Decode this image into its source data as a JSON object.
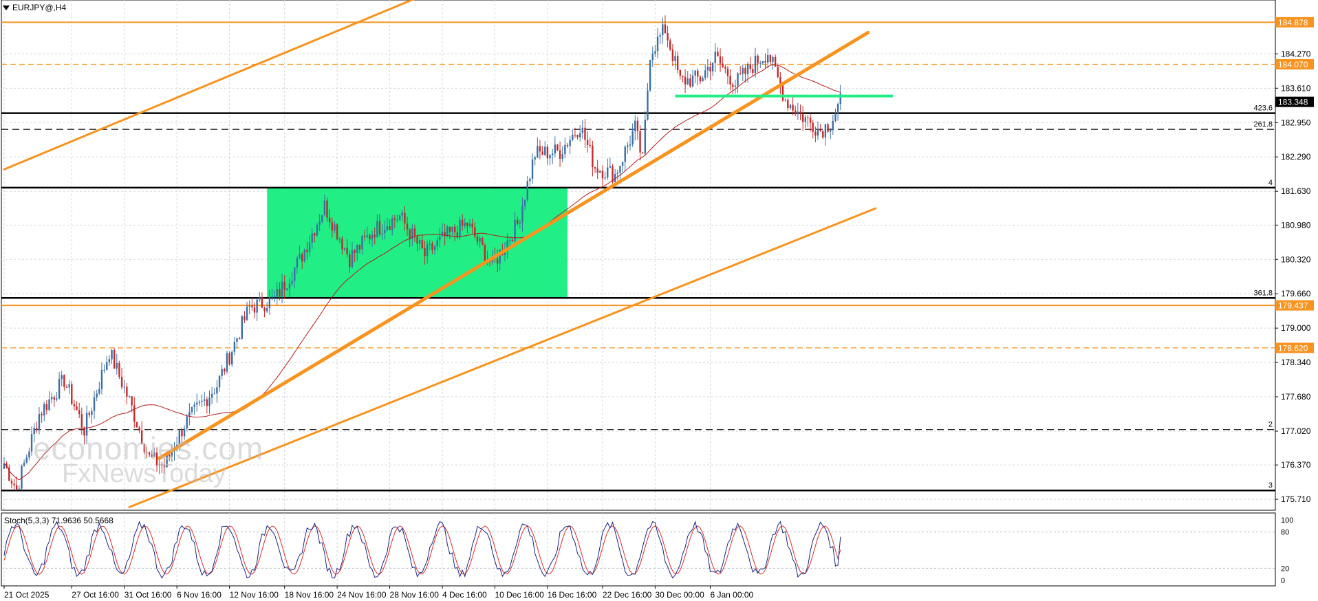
{
  "header": {
    "symbol_label": "EURJPY@,H4"
  },
  "stoch": {
    "label": "Stoch(5,3,3) 71.9636 50.5668",
    "levels": [
      "100",
      "80",
      "20",
      "0"
    ]
  },
  "watermark": {
    "line1": "economies.com",
    "line2": "FxNewsToday"
  },
  "colors": {
    "orange": "#f7931e",
    "green": "#21ee85",
    "ma": "#b11b1b",
    "up": "#3a6ea5",
    "down": "#c62828",
    "k_line": "#1a237e",
    "d_line": "#d32f2f"
  },
  "price_ticks": [
    "184.878",
    "184.270",
    "183.610",
    "182.950",
    "182.290",
    "181.630",
    "180.980",
    "180.320",
    "179.660",
    "179.000",
    "178.340",
    "177.680",
    "177.020",
    "176.370",
    "175.710"
  ],
  "price_tags": [
    {
      "text": "184.878",
      "price": 184.878,
      "bg": "#f7931e",
      "fg": "#fff"
    },
    {
      "text": "184.070",
      "price": 184.07,
      "bg": "#f7931e",
      "fg": "#fff"
    },
    {
      "text": "183.348",
      "price": 183.348,
      "bg": "#000",
      "fg": "#fff"
    },
    {
      "text": "179.437",
      "price": 179.437,
      "bg": "#f7931e",
      "fg": "#fff"
    },
    {
      "text": "178.620",
      "price": 178.62,
      "bg": "#f7931e",
      "fg": "#fff"
    }
  ],
  "fib_labels": [
    {
      "text": "423.6",
      "price": 183.13
    },
    {
      "text": "261.8",
      "price": 182.82
    },
    {
      "text": "4",
      "price": 181.7
    },
    {
      "text": "361.8",
      "price": 179.58
    },
    {
      "text": "2",
      "price": 177.05
    },
    {
      "text": "3",
      "price": 175.88
    }
  ],
  "time_ticks": [
    "21 Oct 2025",
    "27 Oct 16:00",
    "31 Oct 16:00",
    "6 Nov 16:00",
    "12 Nov 16:00",
    "18 Nov 16:00",
    "24 Nov 16:00",
    "28 Nov 16:00",
    "4 Dec 16:00",
    "10 Dec 16:00",
    "16 Dec 16:00",
    "22 Dec 16:00",
    "30 Dec 00:00",
    "6 Jan 00:00"
  ],
  "chart_data": {
    "type": "candlestick",
    "symbol": "EURJPY@",
    "timeframe": "H4",
    "ylim": [
      175.5,
      185.2
    ],
    "horizontal_levels": [
      {
        "price": 184.878,
        "style": "solid",
        "color": "orange"
      },
      {
        "price": 184.07,
        "style": "dashed",
        "color": "orange"
      },
      {
        "price": 183.13,
        "style": "solid",
        "color": "black"
      },
      {
        "price": 182.82,
        "style": "dashed",
        "color": "black"
      },
      {
        "price": 181.7,
        "style": "solid",
        "color": "black"
      },
      {
        "price": 179.58,
        "style": "solid",
        "color": "black"
      },
      {
        "price": 179.437,
        "style": "solid",
        "color": "orange"
      },
      {
        "price": 178.62,
        "style": "dashed",
        "color": "orange"
      },
      {
        "price": 177.05,
        "style": "dashed",
        "color": "black"
      },
      {
        "price": 175.88,
        "style": "solid",
        "color": "black"
      }
    ],
    "green_zone": {
      "from_bar": 105,
      "to_bar": 225,
      "price_low": 179.58,
      "price_high": 181.7
    },
    "green_line": {
      "from_bar": 268,
      "to_bar": 355,
      "price": 183.46
    },
    "trendlines": [
      {
        "bar1": 0,
        "price1": 182.05,
        "bar2": 175,
        "price2": 185.55,
        "width": 3
      },
      {
        "bar1": 50,
        "price1": 175.56,
        "bar2": 348,
        "price2": 181.3,
        "width": 3
      },
      {
        "bar1": 62,
        "price1": 176.5,
        "bar2": 345,
        "price2": 184.68,
        "width": 5
      }
    ],
    "anchors": [
      {
        "bar": 0,
        "price": 176.4
      },
      {
        "bar": 5,
        "price": 175.9
      },
      {
        "bar": 14,
        "price": 177.35
      },
      {
        "bar": 24,
        "price": 178.0
      },
      {
        "bar": 32,
        "price": 177.05
      },
      {
        "bar": 42,
        "price": 178.55
      },
      {
        "bar": 50,
        "price": 177.6
      },
      {
        "bar": 58,
        "price": 176.5
      },
      {
        "bar": 64,
        "price": 176.35
      },
      {
        "bar": 72,
        "price": 177.15
      },
      {
        "bar": 85,
        "price": 177.9
      },
      {
        "bar": 98,
        "price": 179.4
      },
      {
        "bar": 108,
        "price": 179.55
      },
      {
        "bar": 118,
        "price": 180.3
      },
      {
        "bar": 128,
        "price": 181.35
      },
      {
        "bar": 138,
        "price": 180.35
      },
      {
        "bar": 148,
        "price": 180.9
      },
      {
        "bar": 158,
        "price": 181.15
      },
      {
        "bar": 168,
        "price": 180.4
      },
      {
        "bar": 176,
        "price": 180.75
      },
      {
        "bar": 185,
        "price": 181.0
      },
      {
        "bar": 195,
        "price": 180.2
      },
      {
        "bar": 205,
        "price": 181.0
      },
      {
        "bar": 212,
        "price": 182.35
      },
      {
        "bar": 222,
        "price": 182.4
      },
      {
        "bar": 230,
        "price": 182.9
      },
      {
        "bar": 236,
        "price": 182.1
      },
      {
        "bar": 244,
        "price": 181.95
      },
      {
        "bar": 252,
        "price": 182.85
      },
      {
        "bar": 255,
        "price": 182.2
      },
      {
        "bar": 258,
        "price": 184.3
      },
      {
        "bar": 264,
        "price": 184.75
      },
      {
        "bar": 270,
        "price": 183.75
      },
      {
        "bar": 278,
        "price": 183.8
      },
      {
        "bar": 284,
        "price": 184.2
      },
      {
        "bar": 292,
        "price": 183.7
      },
      {
        "bar": 300,
        "price": 184.1
      },
      {
        "bar": 305,
        "price": 184.3
      },
      {
        "bar": 312,
        "price": 183.4
      },
      {
        "bar": 318,
        "price": 183.1
      },
      {
        "bar": 326,
        "price": 182.8
      },
      {
        "bar": 330,
        "price": 182.95
      },
      {
        "bar": 334,
        "price": 183.35
      }
    ],
    "ma_period": 50,
    "stochastic": {
      "k": 71.9636,
      "d": 50.5668,
      "params": [
        5,
        3,
        3
      ],
      "levels": [
        20,
        80
      ]
    }
  }
}
